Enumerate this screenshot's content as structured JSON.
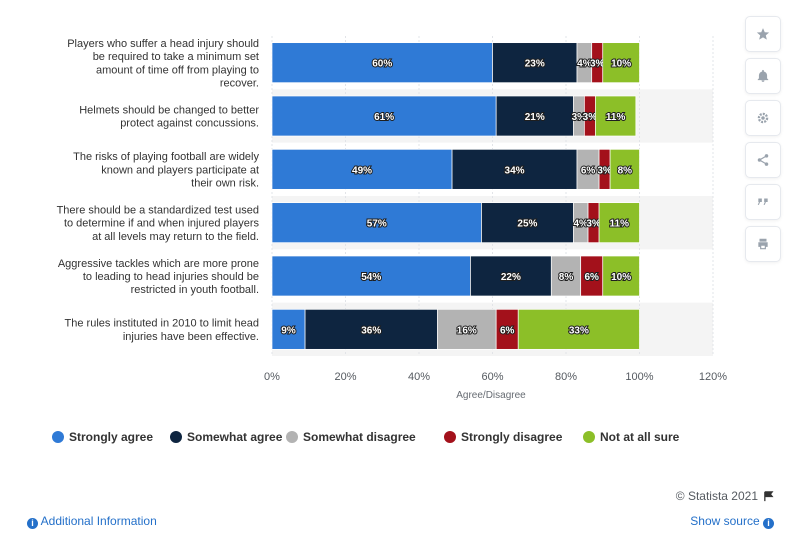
{
  "chart_data": {
    "type": "bar",
    "orientation": "horizontal",
    "stacked": true,
    "categories": [
      "Players who suffer a head injury should be required to take a minimum set amount of time off from playing to recover.",
      "Helmets should be changed to better protect against concussions.",
      "The risks of playing football are widely known and players participate at their own risk.",
      "There should be a standardized test used to determine if and when injured players at all levels may return to the field.",
      "Aggressive tackles which are more prone to leading to head injuries should be restricted in youth football.",
      "The rules instituted in 2010 to limit head injuries have been effective."
    ],
    "category_lines": [
      [
        "Players who suffer a head injury should",
        "be required to take a minimum set",
        "amount of time off from playing to",
        "recover."
      ],
      [
        "Helmets should be changed to better",
        "protect against concussions."
      ],
      [
        "The risks of playing football are widely",
        "known and players participate at",
        "their own risk."
      ],
      [
        "There should be a standardized test used",
        "to determine if and when injured players",
        "at all levels may return to the field."
      ],
      [
        "Aggressive tackles which are more prone",
        "to leading to head injuries should be",
        "restricted in youth football."
      ],
      [
        "The rules instituted in 2010 to limit head",
        "injuries have been effective."
      ]
    ],
    "series": [
      {
        "name": "Strongly agree",
        "color": "#2f7ad6",
        "values": [
          60,
          61,
          49,
          57,
          54,
          9
        ]
      },
      {
        "name": "Somewhat agree",
        "color": "#0e2540",
        "values": [
          23,
          21,
          34,
          25,
          22,
          36
        ]
      },
      {
        "name": "Somewhat disagree",
        "color": "#b3b3b3",
        "values": [
          4,
          3,
          6,
          4,
          8,
          16
        ]
      },
      {
        "name": "Strongly disagree",
        "color": "#a3111b",
        "values": [
          3,
          3,
          3,
          3,
          6,
          6
        ]
      },
      {
        "name": "Not at all sure",
        "color": "#8cbf28",
        "values": [
          10,
          11,
          8,
          11,
          10,
          33
        ]
      }
    ],
    "value_suffix": "%",
    "xlabel": "Agree/Disagree",
    "ylabel": "",
    "xlim": [
      0,
      120
    ],
    "x_ticks": [
      0,
      20,
      40,
      60,
      80,
      100,
      120
    ],
    "x_tick_labels": [
      "0%",
      "20%",
      "40%",
      "60%",
      "80%",
      "100%",
      "120%"
    ],
    "grid": "vertical",
    "legend_position": "bottom"
  },
  "footer": {
    "credit": "© Statista 2021",
    "additional_info": "Additional Information",
    "show_source": "Show source"
  },
  "toolbar": {
    "icons": [
      "star-icon",
      "bell-icon",
      "gear-icon",
      "share-icon",
      "quote-icon",
      "print-icon"
    ]
  }
}
